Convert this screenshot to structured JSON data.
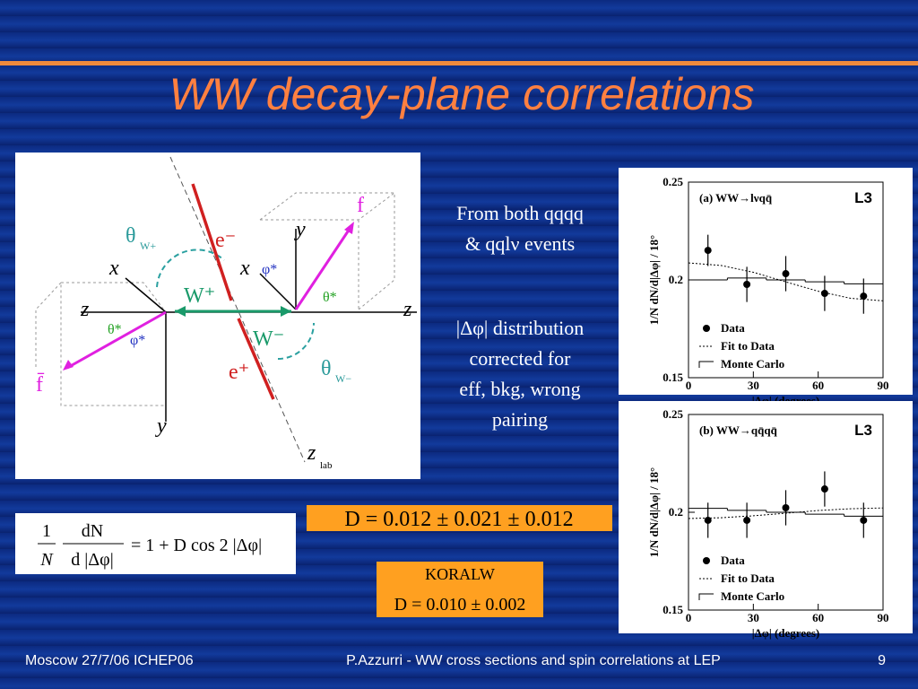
{
  "slide": {
    "title": "WW decay-plane correlations",
    "diagram": {
      "labels": [
        "θ",
        "W+",
        "e⁻",
        "f",
        "y",
        "x",
        "x",
        "W⁺",
        "φ*",
        "θ*",
        "z",
        "z",
        "θ*",
        "φ*",
        "W⁻",
        "e⁺",
        "θ",
        "W−",
        "f̄",
        "y",
        "z",
        "lab"
      ]
    },
    "notes": [
      "From both qqqq",
      "& qqlν events",
      "|Δφ| distribution",
      "corrected for",
      "eff, bkg, wrong",
      "pairing"
    ],
    "formula": {
      "num1": "1",
      "den1": "N",
      "num2": "dN",
      "den2": "d |Δφ|",
      "rhs": "= 1 + D cos 2 |Δφ|"
    },
    "result": "D = 0.012 ± 0.021 ± 0.012",
    "koralw": {
      "name": "KORALW",
      "value": "D = 0.010 ± 0.002"
    },
    "footer": {
      "left": "Moscow  27/7/06 ICHEP06",
      "center": "P.Azzurri - WW cross sections and spin correlations at LEP",
      "page": "9"
    }
  },
  "chart_data": [
    {
      "type": "scatter",
      "title": "(a) WW→lνqq̄",
      "badge": "L3",
      "xlabel": "|Δφ| (degrees)",
      "ylabel": "1/N dN/d|Δφ| / 18°",
      "xlim": [
        0,
        90
      ],
      "ylim": [
        0.15,
        0.25
      ],
      "xticks": [
        0,
        30,
        60,
        90
      ],
      "yticks": [
        0.15,
        0.2,
        0.25
      ],
      "series": [
        {
          "name": "Data",
          "style": "points",
          "color": "#000000",
          "x": [
            9,
            27,
            45,
            63,
            81
          ],
          "values": [
            0.2151,
            0.1977,
            0.2032,
            0.1931,
            0.1917
          ],
          "errors": [
            0.008,
            0.009,
            0.009,
            0.009,
            0.009
          ]
        },
        {
          "name": "Fit to Data",
          "style": "dotted",
          "color": "#000000",
          "x": [
            0,
            15,
            30,
            45,
            60,
            75,
            90
          ],
          "values": [
            0.2087,
            0.2074,
            0.2039,
            0.199,
            0.1942,
            0.1906,
            0.1893
          ]
        },
        {
          "name": "Monte Carlo",
          "style": "step",
          "color": "#000000",
          "bins": [
            0,
            18,
            36,
            54,
            72,
            90
          ],
          "values": [
            0.2,
            0.201,
            0.2,
            0.199,
            0.198
          ]
        }
      ]
    },
    {
      "type": "scatter",
      "title": "(b) WW→qq̄qq̄",
      "badge": "L3",
      "xlabel": "|Δφ| (degrees)",
      "ylabel": "1/N dN/d|Δφ| / 18°",
      "xlim": [
        0,
        90
      ],
      "ylim": [
        0.15,
        0.25
      ],
      "xticks": [
        0,
        30,
        60,
        90
      ],
      "yticks": [
        0.15,
        0.2,
        0.25
      ],
      "series": [
        {
          "name": "Data",
          "style": "points",
          "color": "#000000",
          "x": [
            9,
            27,
            45,
            63,
            81
          ],
          "values": [
            0.1959,
            0.1959,
            0.2023,
            0.2119,
            0.1959
          ],
          "errors": [
            0.009,
            0.009,
            0.009,
            0.009,
            0.009
          ]
        },
        {
          "name": "Fit to Data",
          "style": "dotted",
          "color": "#000000",
          "x": [
            0,
            15,
            30,
            45,
            60,
            75,
            90
          ],
          "values": [
            0.1968,
            0.1972,
            0.1982,
            0.1995,
            0.2009,
            0.2018,
            0.2022
          ]
        },
        {
          "name": "Monte Carlo",
          "style": "step",
          "color": "#000000",
          "bins": [
            0,
            18,
            36,
            54,
            72,
            90
          ],
          "values": [
            0.202,
            0.201,
            0.2,
            0.199,
            0.198
          ]
        }
      ]
    }
  ]
}
